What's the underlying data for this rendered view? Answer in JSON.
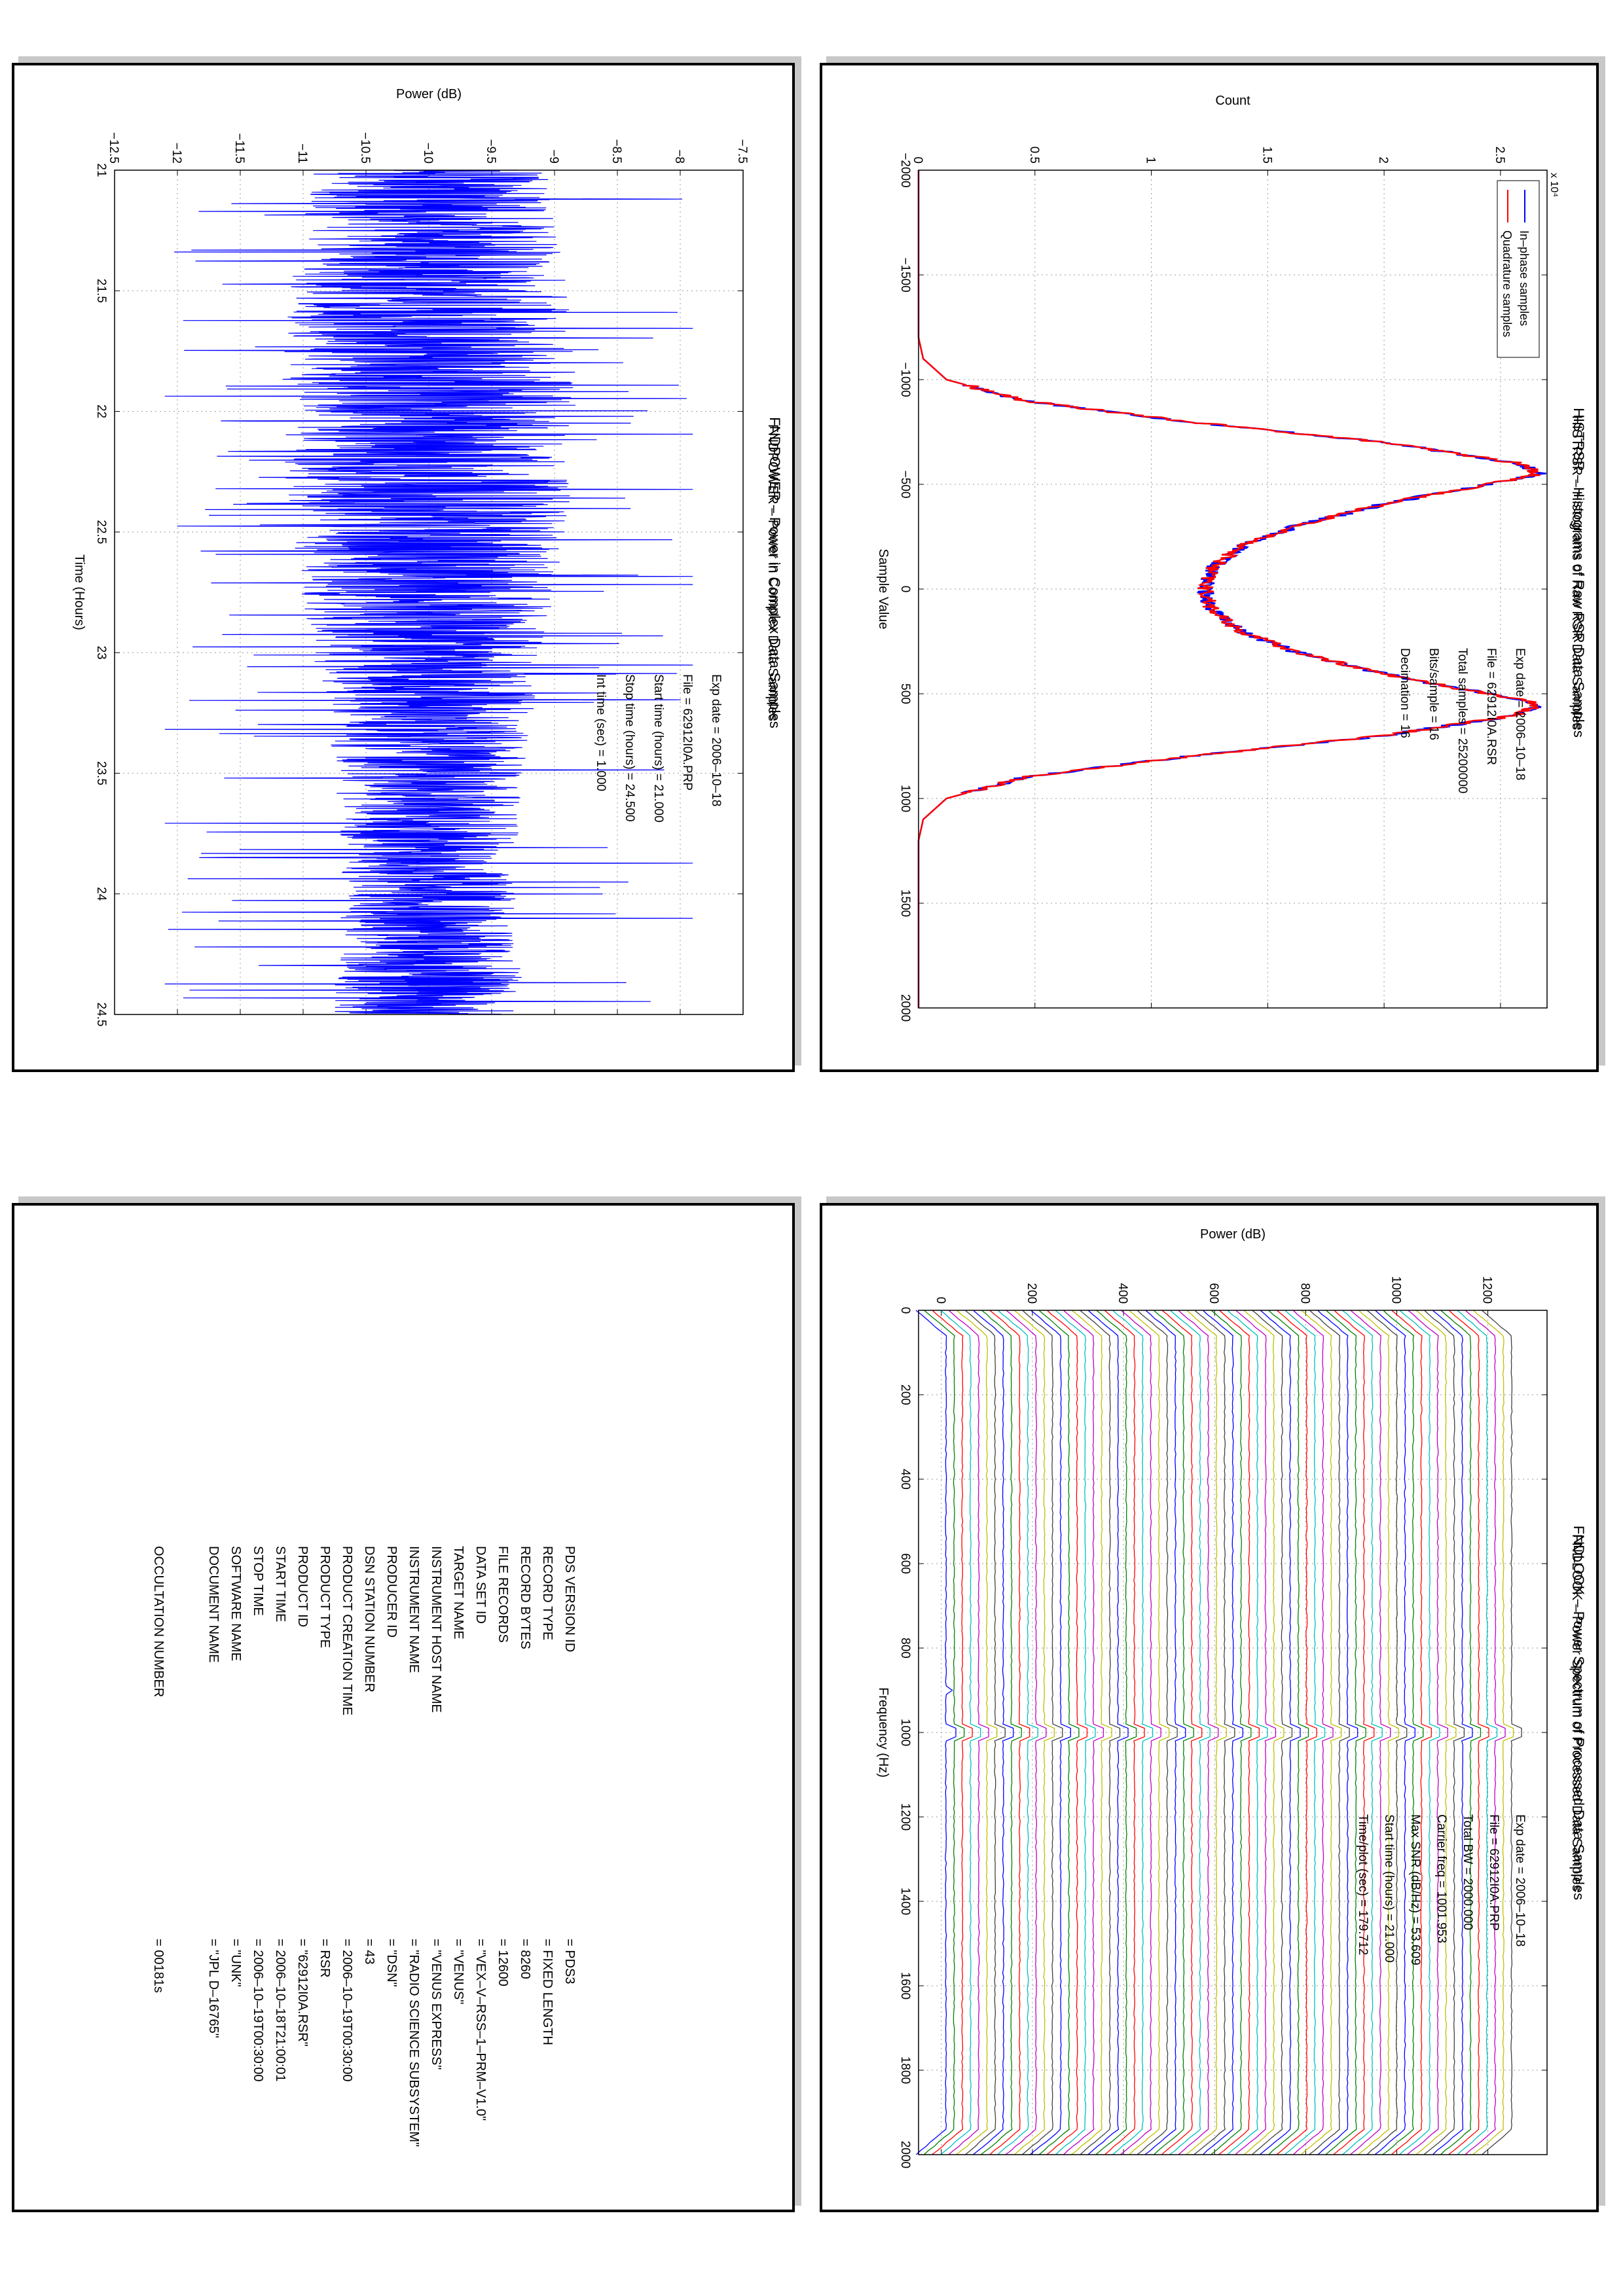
{
  "histrsr": {
    "title": "HISTRSR – Histograms of Raw RSR Data Samples",
    "info": {
      "exp_date": "Exp date = 2006–10–18",
      "file": "File = 62912I0A.RSR",
      "total_samples": "Total samples =  25200000",
      "bits_sample": "Bits/sample   =       16",
      "decimation": "Decimation   =       16"
    },
    "legend": [
      "In–phase samples",
      "Quadrature samples"
    ],
    "exponent_label": "x 10⁴",
    "colors": {
      "inphase": "#0000ff",
      "quadrature": "#ff0000"
    }
  },
  "fndpower": {
    "title": "FNDPOWER – Power in Complex Data Samples",
    "info": {
      "exp_date": "Exp date = 2006–10–18",
      "file": "File = 62912I0A.PRP",
      "start_time": "Start time (hours) = 21.000",
      "stop_time": "Stop time (hours)  = 24.500",
      "int_time": "Int time (sec)   =    1.000"
    },
    "color": "#0000ff"
  },
  "fndlook": {
    "title": "FNDLOOK – Power Spectrum of Processed Data Samples",
    "info": {
      "exp_date": "Exp date = 2006–10–18",
      "file": "File = 62912I0A.PRP",
      "total_bw": "Total BW =      2000.000",
      "carrier_freq": "Carrier freq =   1001.953",
      "max_snr": "Max SNR (dB/Hz) =    53.609",
      "start_time": "Start time (hours) =   21.000",
      "time_per_plot": "Time/plot (sec) =  179.712"
    },
    "palette": [
      "#0000ff",
      "#008000",
      "#ff0000",
      "#00bfbf",
      "#bf00bf",
      "#bfbf00",
      "#404040"
    ]
  },
  "label": {
    "rows": [
      {
        "name": "PDS VERSION ID",
        "value": "=  PDS3"
      },
      {
        "name": "RECORD TYPE",
        "value": "=  FIXED LENGTH"
      },
      {
        "name": "RECORD BYTES",
        "value": "=  8260"
      },
      {
        "name": "FILE RECORDS",
        "value": "=  12600"
      },
      {
        "name": "DATA SET ID",
        "value": "=  \"VEX–V–RSS–1–PRM–V1.0\""
      },
      {
        "name": "TARGET NAME",
        "value": "=  \"VENUS\""
      },
      {
        "name": "INSTRUMENT HOST NAME",
        "value": "=  \"VENUS EXPRESS\""
      },
      {
        "name": "INSTRUMENT NAME",
        "value": "=  \"RADIO SCIENCE SUBSYSTEM\""
      },
      {
        "name": "PRODUCER ID",
        "value": "=  \"DSN\""
      },
      {
        "name": "DSN STATION NUMBER",
        "value": "=  43"
      },
      {
        "name": "PRODUCT CREATION TIME",
        "value": "=  2006–10–19T00:30:00"
      },
      {
        "name": "PRODUCT TYPE",
        "value": "=  RSR"
      },
      {
        "name": "PRODUCT ID",
        "value": "=  \"62912I0A.RSR\""
      },
      {
        "name": "START TIME",
        "value": "=  2006–10–18T21:00:01"
      },
      {
        "name": "STOP TIME",
        "value": "=  2006–10–19T00:30:00"
      },
      {
        "name": "SOFTWARE NAME",
        "value": "=  \"UNK\""
      },
      {
        "name": "DOCUMENT NAME",
        "value": "=  \"JPL D–16765\""
      },
      {
        "name": "OCCULTATION NUMBER",
        "value": "=  00181s"
      }
    ]
  },
  "chart_data": [
    {
      "type": "line",
      "title": "HISTRSR – Histograms of Raw RSR Data Samples",
      "xlabel": "Sample Value",
      "ylabel": "Count",
      "xlim": [
        -2000,
        2000
      ],
      "ylim": [
        0,
        27000
      ],
      "xticks": [
        "−2000",
        "−1500",
        "−1000",
        "−500",
        "0",
        "500",
        "1000",
        "1500",
        "2000"
      ],
      "yticks": [
        "0",
        "0.5",
        "1",
        "1.5",
        "2",
        "2.5"
      ],
      "grid": true,
      "legend": "top-left",
      "x": [
        -2000,
        -1200,
        -1100,
        -1000,
        -900,
        -800,
        -700,
        -600,
        -550,
        -500,
        -450,
        -400,
        -300,
        -200,
        -100,
        0,
        100,
        200,
        300,
        400,
        450,
        500,
        550,
        600,
        700,
        800,
        900,
        1000,
        1100,
        1200,
        2000
      ],
      "series": [
        {
          "name": "In–phase samples",
          "values": [
            0,
            0,
            200,
            1200,
            4500,
            11500,
            20000,
            25800,
            26700,
            24500,
            22000,
            19800,
            16200,
            13800,
            12600,
            12300,
            12600,
            13800,
            16200,
            19800,
            22000,
            24500,
            26700,
            25800,
            20000,
            11500,
            4500,
            1200,
            200,
            0,
            0
          ]
        },
        {
          "name": "Quadrature samples",
          "values": [
            0,
            0,
            200,
            1200,
            4500,
            11500,
            20000,
            25800,
            26700,
            24500,
            22000,
            19800,
            16200,
            13800,
            12600,
            12300,
            12600,
            13800,
            16200,
            19800,
            22000,
            24500,
            26700,
            25800,
            20000,
            11500,
            4500,
            1200,
            200,
            0,
            0
          ]
        }
      ]
    },
    {
      "type": "line",
      "title": "FNDPOWER – Power in Complex Data Samples",
      "xlabel": "Time (Hours)",
      "ylabel": "Power (dB)",
      "xlim": [
        21,
        24.5
      ],
      "ylim": [
        -12.5,
        -7.5
      ],
      "xticks": [
        "21",
        "21.5",
        "22",
        "22.5",
        "23",
        "23.5",
        "24",
        "24.5"
      ],
      "yticks": [
        "−12.5",
        "−12",
        "−11.5",
        "−11",
        "−10.5",
        "−10",
        "−9.5",
        "−9",
        "−8.5",
        "−8",
        "−7.5"
      ],
      "grid": true,
      "series": [
        {
          "name": "",
          "mean": -10.0,
          "spread_low": -11.7,
          "spread_high": -8.3,
          "extreme_low": -12.1,
          "extreme_high": -7.9
        }
      ]
    },
    {
      "type": "line",
      "title": "FNDLOOK – Power Spectrum of Processed Data Samples",
      "xlabel": "Frequency (Hz)",
      "ylabel": "Power (dB)",
      "xlim": [
        0,
        2000
      ],
      "ylim": [
        -50,
        1330
      ],
      "xticks": [
        "0",
        "200",
        "400",
        "600",
        "800",
        "1000",
        "1200",
        "1400",
        "1600",
        "1800",
        "2000"
      ],
      "yticks": [
        "0",
        "200",
        "400",
        "600",
        "800",
        "1000",
        "1200"
      ],
      "grid": true,
      "series_count": 70,
      "series_offset_db": 18,
      "carrier_hz": 1001.953
    }
  ]
}
